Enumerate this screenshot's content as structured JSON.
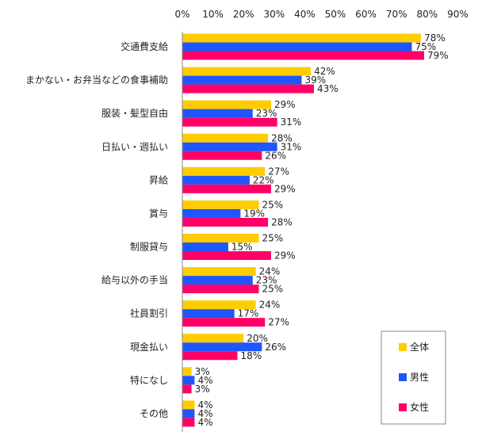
{
  "chart_data": {
    "type": "bar",
    "orientation": "horizontal",
    "categories": [
      "交通費支給",
      "まかない・お弁当などの食事補助",
      "服装・髪型自由",
      "日払い・週払い",
      "昇給",
      "賞与",
      "制服貸与",
      "給与以外の手当",
      "社員割引",
      "現金払い",
      "特になし",
      "その他"
    ],
    "series": [
      {
        "name": "全体",
        "color": "#FFCC00",
        "values": [
          78,
          42,
          29,
          28,
          27,
          25,
          25,
          24,
          24,
          20,
          3,
          4
        ]
      },
      {
        "name": "男性",
        "color": "#1E56FF",
        "values": [
          75,
          39,
          23,
          31,
          22,
          19,
          15,
          23,
          17,
          26,
          4,
          4
        ]
      },
      {
        "name": "女性",
        "color": "#FF0066",
        "values": [
          79,
          43,
          31,
          26,
          29,
          28,
          29,
          25,
          27,
          18,
          3,
          4
        ]
      }
    ],
    "xlim": [
      0,
      90
    ],
    "xticks": [
      0,
      10,
      20,
      30,
      40,
      50,
      60,
      70,
      80,
      90
    ],
    "tick_suffix": "%",
    "value_suffix": "%",
    "xaxis_position": "top",
    "grid": false,
    "legend_position": "bottom-right"
  }
}
